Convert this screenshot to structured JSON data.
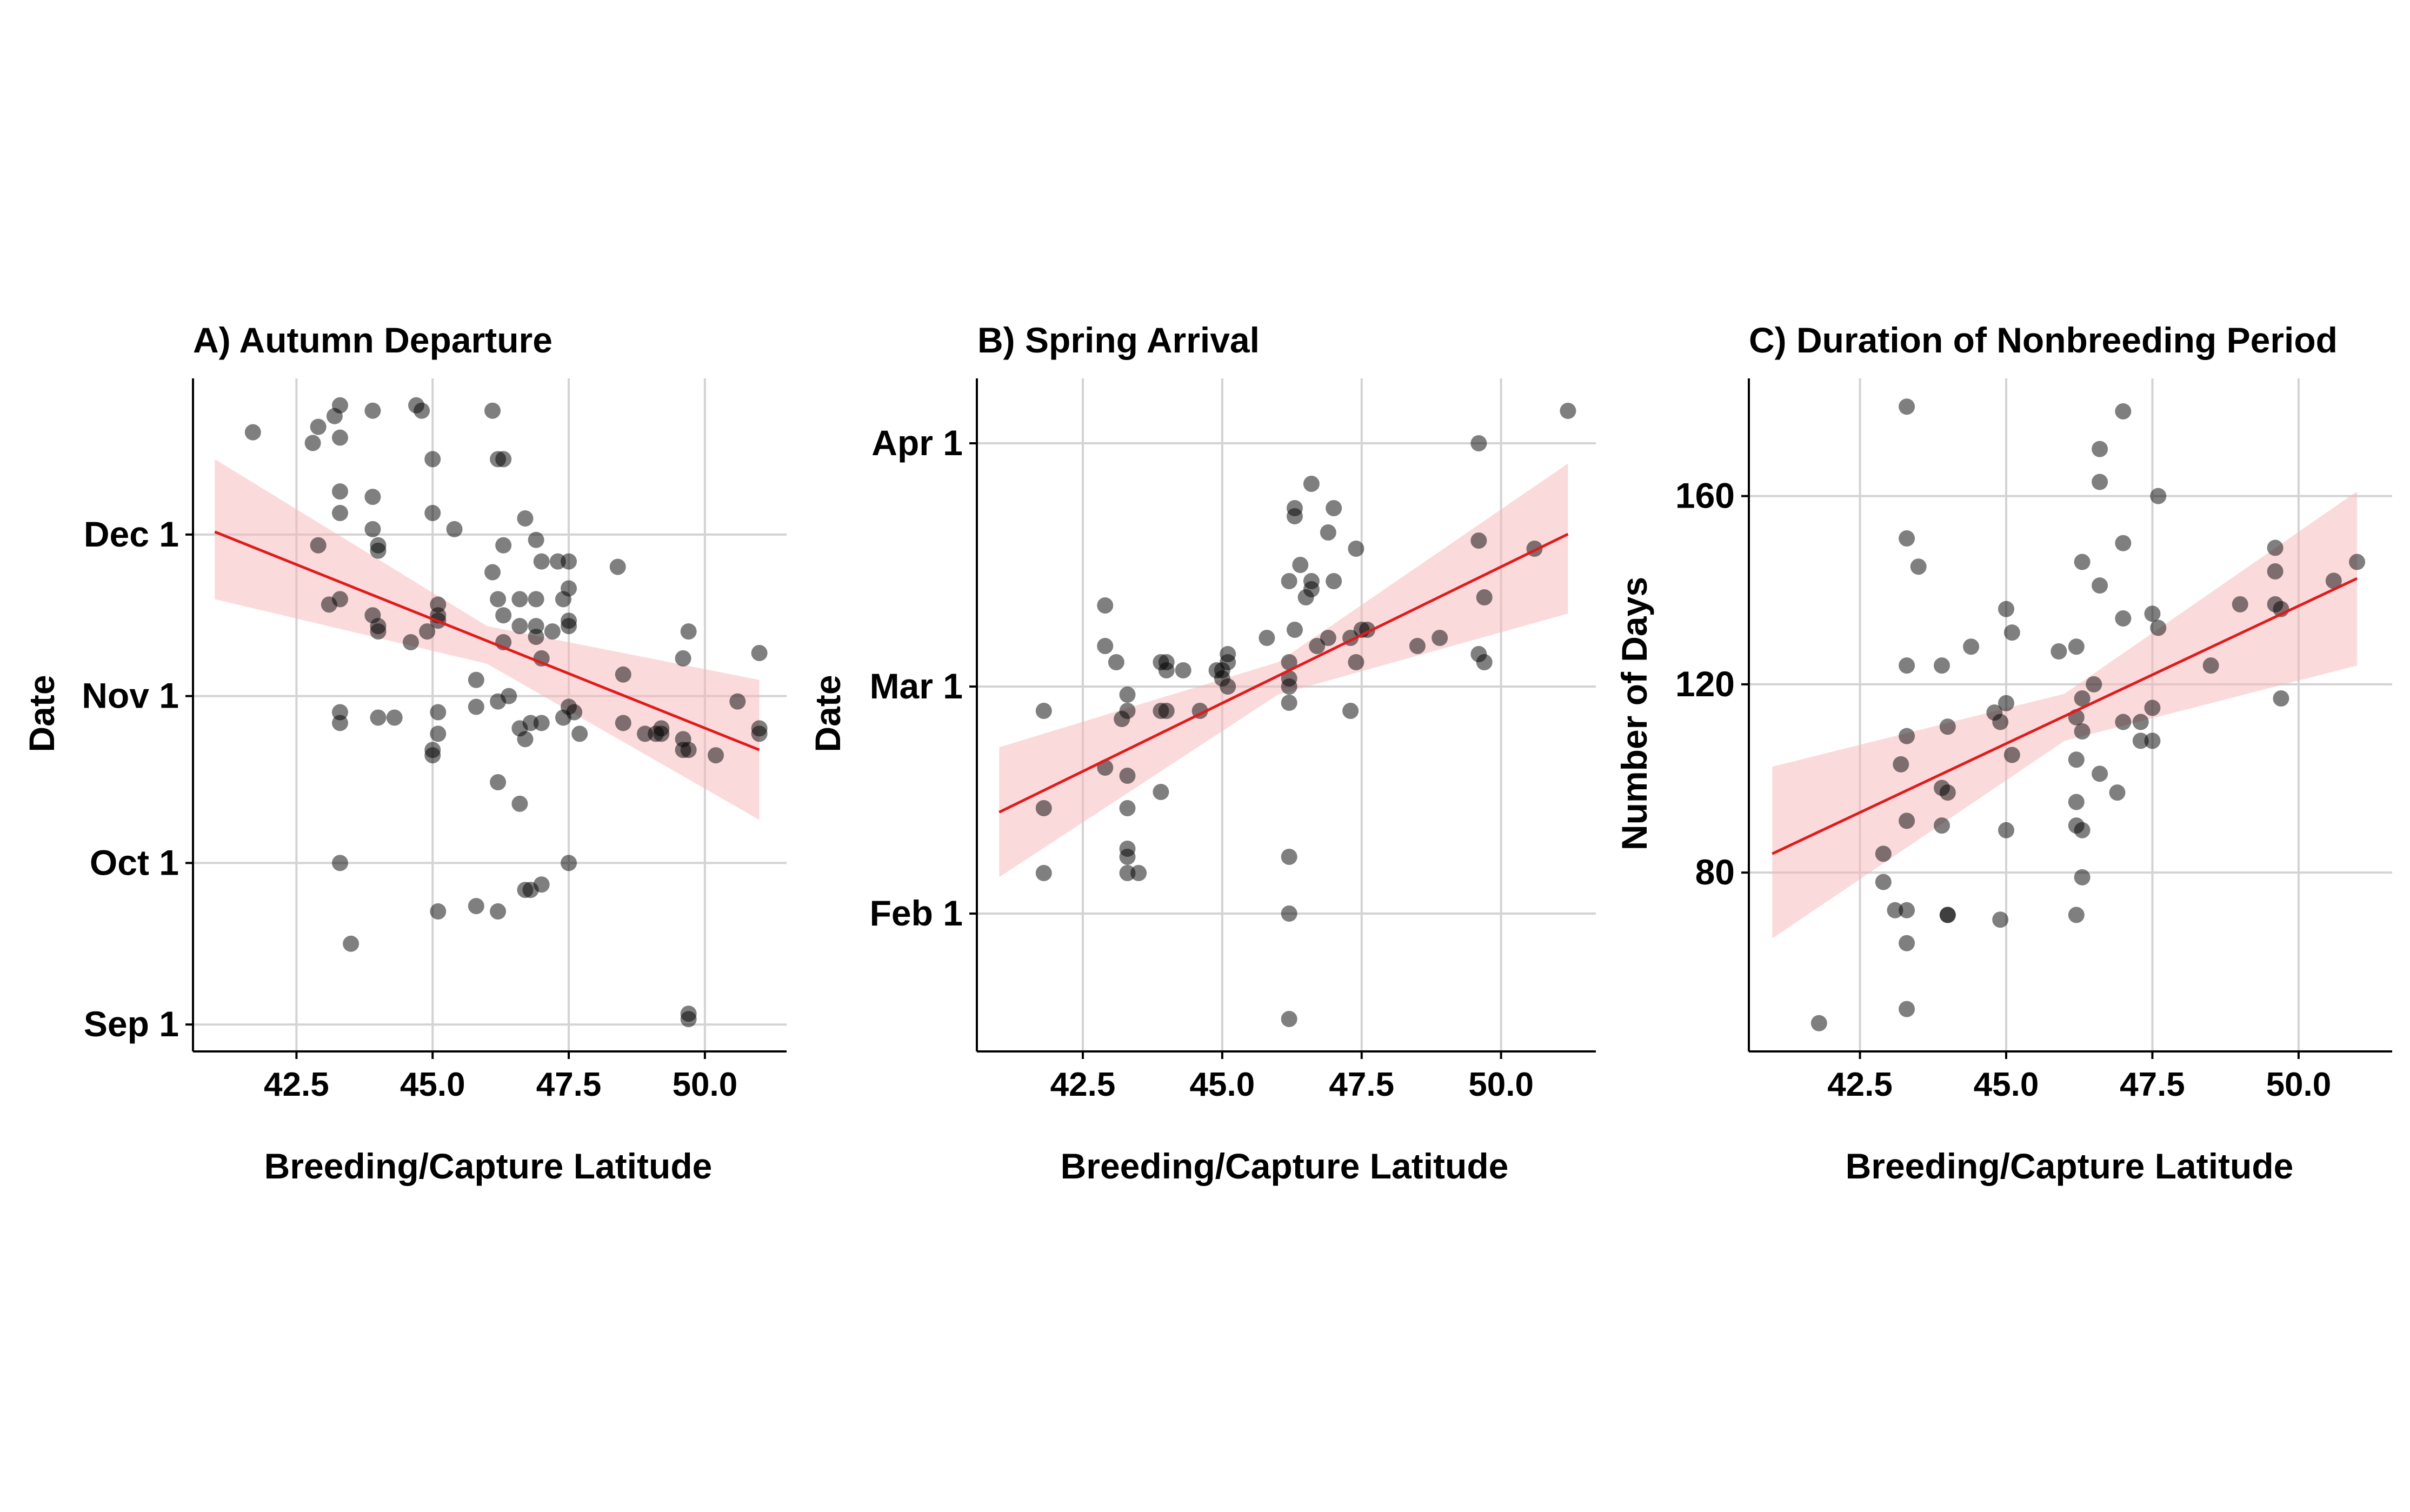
{
  "chart_data": [
    {
      "type": "scatter",
      "title": "A) Autumn Departure",
      "xlabel": "Breeding/Capture Latitude",
      "ylabel": "Date",
      "x_ticks": [
        "42.5",
        "45.0",
        "47.5",
        "50.0"
      ],
      "y_ticks": [
        {
          "label": "Sep 1",
          "value": 0
        },
        {
          "label": "Oct 1",
          "value": 30
        },
        {
          "label": "Nov 1",
          "value": 61
        },
        {
          "label": "Dec 1",
          "value": 91
        }
      ],
      "xlim": [
        40.6,
        51.5
      ],
      "ylim": [
        -5,
        120
      ],
      "grid": true,
      "trend": {
        "x": [
          41.0,
          51.0
        ],
        "y": [
          91.5,
          51.0
        ]
      },
      "ribbon": {
        "x": [
          41.0,
          46.0,
          51.0
        ],
        "lower": [
          79.0,
          67.0,
          38.0
        ],
        "upper": [
          105.0,
          74.0,
          64.0
        ]
      },
      "points": [
        [
          41.7,
          110
        ],
        [
          42.8,
          108
        ],
        [
          42.9,
          111
        ],
        [
          43.2,
          113
        ],
        [
          43.3,
          109
        ],
        [
          43.3,
          115
        ],
        [
          43.9,
          114
        ],
        [
          44.7,
          115
        ],
        [
          44.8,
          114
        ],
        [
          45.0,
          105
        ],
        [
          46.1,
          114
        ],
        [
          46.2,
          105
        ],
        [
          46.3,
          105
        ],
        [
          42.9,
          89
        ],
        [
          43.3,
          99
        ],
        [
          43.3,
          95
        ],
        [
          43.9,
          98
        ],
        [
          43.9,
          92
        ],
        [
          44.0,
          89
        ],
        [
          44.0,
          88
        ],
        [
          45.0,
          95
        ],
        [
          45.4,
          92
        ],
        [
          46.3,
          89
        ],
        [
          46.7,
          94
        ],
        [
          46.9,
          90
        ],
        [
          43.1,
          78
        ],
        [
          43.3,
          79
        ],
        [
          43.9,
          76
        ],
        [
          44.0,
          74
        ],
        [
          44.0,
          73
        ],
        [
          44.6,
          71
        ],
        [
          44.9,
          73
        ],
        [
          45.1,
          78
        ],
        [
          45.1,
          76
        ],
        [
          45.1,
          75
        ],
        [
          46.1,
          84
        ],
        [
          46.2,
          79
        ],
        [
          46.3,
          76
        ],
        [
          46.3,
          71
        ],
        [
          46.6,
          74
        ],
        [
          46.6,
          79
        ],
        [
          46.9,
          74
        ],
        [
          46.9,
          72
        ],
        [
          46.9,
          79
        ],
        [
          47.0,
          86
        ],
        [
          47.2,
          73
        ],
        [
          47.3,
          86
        ],
        [
          47.4,
          79
        ],
        [
          47.5,
          81
        ],
        [
          47.5,
          86
        ],
        [
          47.5,
          75
        ],
        [
          47.5,
          74
        ],
        [
          48.4,
          85
        ],
        [
          43.3,
          56
        ],
        [
          43.3,
          58
        ],
        [
          44.0,
          57
        ],
        [
          44.3,
          57
        ],
        [
          45.1,
          58
        ],
        [
          45.0,
          51
        ],
        [
          45.0,
          50
        ],
        [
          45.8,
          64
        ],
        [
          45.8,
          59
        ],
        [
          46.2,
          60
        ],
        [
          46.4,
          61
        ],
        [
          46.6,
          55
        ],
        [
          46.7,
          53
        ],
        [
          46.8,
          56
        ],
        [
          47.0,
          56
        ],
        [
          47.0,
          68
        ],
        [
          47.4,
          57
        ],
        [
          47.5,
          59
        ],
        [
          47.6,
          58
        ],
        [
          47.7,
          54
        ],
        [
          48.5,
          65
        ],
        [
          48.5,
          56
        ],
        [
          48.9,
          54
        ],
        [
          49.1,
          54
        ],
        [
          49.2,
          55
        ],
        [
          49.2,
          54
        ],
        [
          49.6,
          53
        ],
        [
          49.6,
          51
        ],
        [
          49.7,
          51
        ],
        [
          49.6,
          68
        ],
        [
          49.7,
          73
        ],
        [
          50.2,
          50
        ],
        [
          50.6,
          60
        ],
        [
          51.0,
          54
        ],
        [
          51.0,
          55
        ],
        [
          51.0,
          69
        ],
        [
          45.1,
          54
        ],
        [
          46.2,
          45
        ],
        [
          46.6,
          41
        ],
        [
          43.3,
          30
        ],
        [
          43.5,
          15
        ],
        [
          45.1,
          21
        ],
        [
          45.8,
          22
        ],
        [
          46.2,
          21
        ],
        [
          46.7,
          25
        ],
        [
          46.8,
          25
        ],
        [
          47.0,
          26
        ],
        [
          47.5,
          30
        ],
        [
          49.7,
          2
        ],
        [
          49.7,
          1
        ]
      ]
    },
    {
      "type": "scatter",
      "title": "B) Spring Arrival",
      "xlabel": "Breeding/Capture Latitude",
      "ylabel": "Date",
      "x_ticks": [
        "42.5",
        "45.0",
        "47.5",
        "50.0"
      ],
      "y_ticks": [
        {
          "label": "Feb 1",
          "value": 0
        },
        {
          "label": "Mar 1",
          "value": 28
        },
        {
          "label": "Apr 1",
          "value": 58
        }
      ],
      "xlim": [
        40.6,
        51.7
      ],
      "ylim": [
        -17,
        66
      ],
      "grid": true,
      "trend": {
        "x": [
          41.0,
          51.2
        ],
        "y": [
          12.5,
          46.8
        ]
      },
      "ribbon": {
        "x": [
          41.0,
          46.0,
          51.2
        ],
        "lower": [
          4.5,
          27.0,
          37.0
        ],
        "upper": [
          20.5,
          31.0,
          55.5
        ]
      },
      "points": [
        [
          51.2,
          62
        ],
        [
          49.6,
          58
        ],
        [
          46.6,
          53
        ],
        [
          46.3,
          50
        ],
        [
          46.3,
          49
        ],
        [
          47.0,
          50
        ],
        [
          46.9,
          47
        ],
        [
          47.4,
          45
        ],
        [
          49.6,
          46
        ],
        [
          50.6,
          45
        ],
        [
          46.4,
          43
        ],
        [
          46.2,
          41
        ],
        [
          46.6,
          40
        ],
        [
          46.6,
          41
        ],
        [
          47.0,
          41
        ],
        [
          46.5,
          39
        ],
        [
          49.7,
          39
        ],
        [
          42.9,
          38
        ],
        [
          46.3,
          35
        ],
        [
          47.5,
          35
        ],
        [
          47.6,
          35
        ],
        [
          47.3,
          34
        ],
        [
          46.9,
          34
        ],
        [
          46.7,
          33
        ],
        [
          48.9,
          34
        ],
        [
          48.5,
          33
        ],
        [
          49.6,
          32
        ],
        [
          49.7,
          31
        ],
        [
          45.8,
          34
        ],
        [
          45.1,
          32
        ],
        [
          42.9,
          33
        ],
        [
          43.1,
          31
        ],
        [
          43.9,
          31
        ],
        [
          44.0,
          30
        ],
        [
          44.0,
          31
        ],
        [
          44.3,
          30
        ],
        [
          44.9,
          30
        ],
        [
          45.0,
          30
        ],
        [
          45.1,
          31
        ],
        [
          45.0,
          29
        ],
        [
          45.1,
          28
        ],
        [
          46.2,
          29
        ],
        [
          46.2,
          28
        ],
        [
          46.2,
          31
        ],
        [
          47.4,
          31
        ],
        [
          46.2,
          26
        ],
        [
          47.3,
          25
        ],
        [
          43.3,
          27
        ],
        [
          43.3,
          25
        ],
        [
          43.2,
          24
        ],
        [
          43.9,
          25
        ],
        [
          44.0,
          25
        ],
        [
          44.6,
          25
        ],
        [
          41.8,
          25
        ],
        [
          42.9,
          18
        ],
        [
          43.3,
          17
        ],
        [
          43.9,
          15
        ],
        [
          41.8,
          13
        ],
        [
          43.3,
          13
        ],
        [
          43.3,
          8
        ],
        [
          43.3,
          7
        ],
        [
          43.3,
          5
        ],
        [
          43.5,
          5
        ],
        [
          41.8,
          5
        ],
        [
          46.2,
          7
        ],
        [
          46.2,
          0
        ],
        [
          46.2,
          -13
        ]
      ]
    },
    {
      "type": "scatter",
      "title": "C) Duration of Nonbreeding Period",
      "xlabel": "Breeding/Capture Latitude",
      "ylabel": "Number of Days",
      "x_ticks": [
        "42.5",
        "45.0",
        "47.5",
        "50.0"
      ],
      "y_ticks": [
        {
          "label": "80",
          "value": 80
        },
        {
          "label": "120",
          "value": 120
        },
        {
          "label": "160",
          "value": 160
        }
      ],
      "xlim": [
        40.6,
        51.6
      ],
      "ylim": [
        42,
        185
      ],
      "grid": true,
      "trend": {
        "x": [
          41.0,
          51.0
        ],
        "y": [
          84.0,
          142.5
        ]
      },
      "ribbon": {
        "x": [
          41.0,
          46.0,
          51.0
        ],
        "lower": [
          66.0,
          108.0,
          124.0
        ],
        "upper": [
          102.5,
          118.0,
          161.0
        ]
      },
      "points": [
        [
          43.3,
          179
        ],
        [
          47.0,
          178
        ],
        [
          46.6,
          170
        ],
        [
          46.6,
          163
        ],
        [
          47.6,
          160
        ],
        [
          43.3,
          151
        ],
        [
          47.0,
          150
        ],
        [
          43.5,
          145
        ],
        [
          46.3,
          146
        ],
        [
          46.6,
          141
        ],
        [
          49.6,
          149
        ],
        [
          49.6,
          144
        ],
        [
          51.0,
          146
        ],
        [
          50.6,
          142
        ],
        [
          49.6,
          137
        ],
        [
          49.7,
          136
        ],
        [
          49.0,
          137
        ],
        [
          47.5,
          135
        ],
        [
          47.0,
          134
        ],
        [
          45.0,
          136
        ],
        [
          45.1,
          131
        ],
        [
          44.4,
          128
        ],
        [
          45.9,
          127
        ],
        [
          46.2,
          128
        ],
        [
          47.6,
          132
        ],
        [
          43.3,
          124
        ],
        [
          43.9,
          124
        ],
        [
          48.5,
          124
        ],
        [
          46.5,
          120
        ],
        [
          46.3,
          117
        ],
        [
          47.5,
          115
        ],
        [
          45.0,
          116
        ],
        [
          44.0,
          111
        ],
        [
          44.8,
          114
        ],
        [
          44.9,
          112
        ],
        [
          46.2,
          113
        ],
        [
          47.0,
          112
        ],
        [
          47.3,
          112
        ],
        [
          47.3,
          108
        ],
        [
          47.5,
          108
        ],
        [
          49.7,
          117
        ],
        [
          43.3,
          109
        ],
        [
          43.2,
          103
        ],
        [
          45.1,
          105
        ],
        [
          46.2,
          104
        ],
        [
          46.3,
          110
        ],
        [
          46.6,
          101
        ],
        [
          46.9,
          97
        ],
        [
          43.9,
          98
        ],
        [
          44.0,
          97
        ],
        [
          46.2,
          95
        ],
        [
          43.3,
          91
        ],
        [
          43.9,
          90
        ],
        [
          45.0,
          89
        ],
        [
          46.2,
          90
        ],
        [
          46.3,
          89
        ],
        [
          42.9,
          84
        ],
        [
          42.9,
          78
        ],
        [
          46.3,
          79
        ],
        [
          43.1,
          72
        ],
        [
          43.3,
          72
        ],
        [
          44.0,
          71
        ],
        [
          44.0,
          71
        ],
        [
          44.9,
          70
        ],
        [
          46.2,
          71
        ],
        [
          43.3,
          65
        ],
        [
          43.3,
          51
        ],
        [
          41.8,
          48
        ]
      ]
    }
  ]
}
